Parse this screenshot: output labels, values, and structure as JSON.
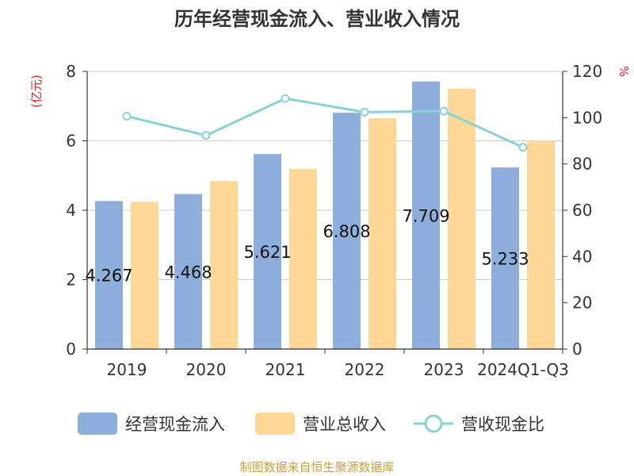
{
  "chart_data": {
    "type": "bar",
    "title": "历年经营现金流入、营业收入情况",
    "ylabel_left": "(亿元)",
    "ylabel_right": "%",
    "categories": [
      "2019",
      "2020",
      "2021",
      "2022",
      "2023",
      "2024Q1-Q3"
    ],
    "ylim_left": [
      0,
      8
    ],
    "ylim_right": [
      0,
      120
    ],
    "yticks_left": [
      0,
      2,
      4,
      6,
      8
    ],
    "yticks_right": [
      0,
      20,
      40,
      60,
      80,
      100,
      120
    ],
    "grid": true,
    "legend_position": "bottom",
    "series": [
      {
        "name": "经营现金流入",
        "type": "bar",
        "axis": "left",
        "color": "#8eaedb",
        "values": [
          4.267,
          4.468,
          5.621,
          6.808,
          7.709,
          5.233
        ],
        "labels": [
          "4.267",
          "4.468",
          "5.621",
          "6.808",
          "7.709",
          "5.233"
        ]
      },
      {
        "name": "营业总收入",
        "type": "bar",
        "axis": "left",
        "color": "#ffd898",
        "values": [
          4.24,
          4.84,
          5.19,
          6.65,
          7.5,
          6.0
        ]
      },
      {
        "name": "营收现金比",
        "type": "line",
        "axis": "right",
        "color": "#86d2d6",
        "values": [
          100.6,
          92.3,
          108.3,
          102.4,
          102.8,
          87.2
        ]
      }
    ]
  },
  "footer": {
    "source": "制图数据来自恒生聚源数据库"
  }
}
